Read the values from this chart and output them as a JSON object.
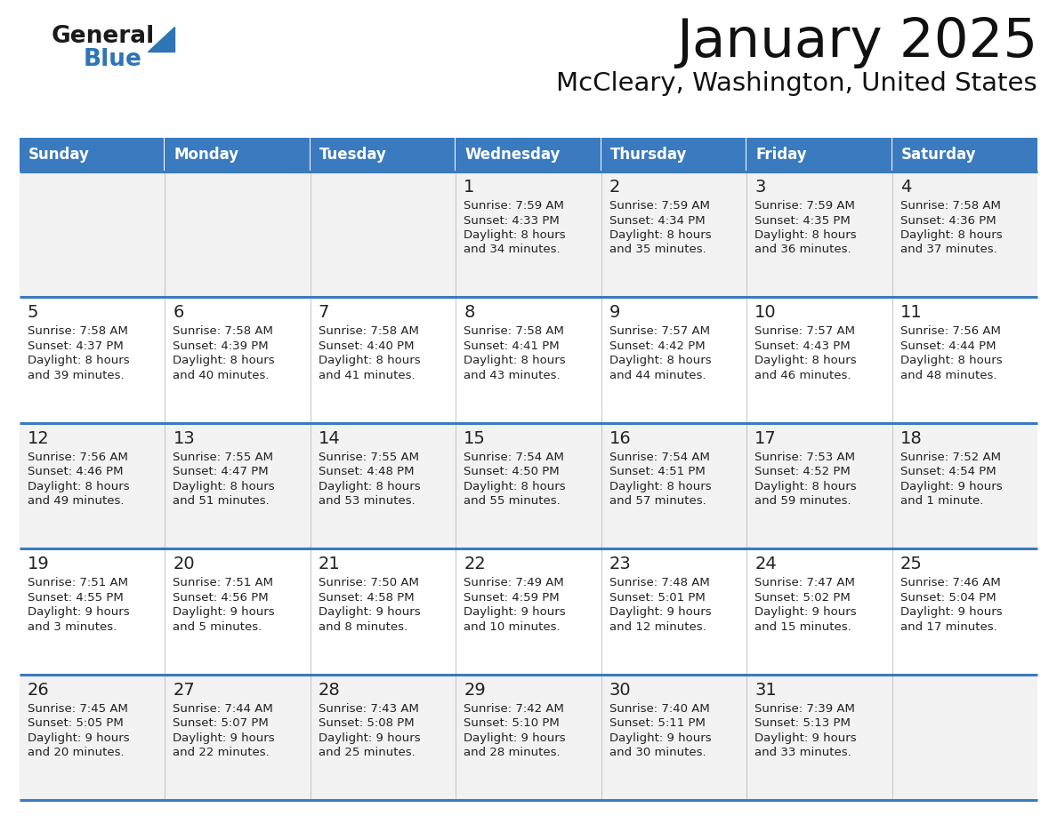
{
  "title": "January 2025",
  "subtitle": "McCleary, Washington, United States",
  "header_color": "#3a7abf",
  "header_text_color": "#FFFFFF",
  "day_names": [
    "Sunday",
    "Monday",
    "Tuesday",
    "Wednesday",
    "Thursday",
    "Friday",
    "Saturday"
  ],
  "background_color": "#FFFFFF",
  "cell_bg_even": "#f2f2f2",
  "cell_bg_odd": "#FFFFFF",
  "border_color": "#3a7abf",
  "day_number_color": "#222222",
  "text_color": "#222222",
  "logo_text1": "General",
  "logo_text2": "Blue",
  "logo_color1": "#1A1A1A",
  "logo_color2": "#2E75B6",
  "logo_triangle_color": "#2E75B6",
  "calendar_data": [
    [
      {
        "day": "",
        "sunrise": "",
        "sunset": "",
        "daylight": ""
      },
      {
        "day": "",
        "sunrise": "",
        "sunset": "",
        "daylight": ""
      },
      {
        "day": "",
        "sunrise": "",
        "sunset": "",
        "daylight": ""
      },
      {
        "day": "1",
        "sunrise": "7:59 AM",
        "sunset": "4:33 PM",
        "daylight": "8 hours and 34 minutes."
      },
      {
        "day": "2",
        "sunrise": "7:59 AM",
        "sunset": "4:34 PM",
        "daylight": "8 hours and 35 minutes."
      },
      {
        "day": "3",
        "sunrise": "7:59 AM",
        "sunset": "4:35 PM",
        "daylight": "8 hours and 36 minutes."
      },
      {
        "day": "4",
        "sunrise": "7:58 AM",
        "sunset": "4:36 PM",
        "daylight": "8 hours and 37 minutes."
      }
    ],
    [
      {
        "day": "5",
        "sunrise": "7:58 AM",
        "sunset": "4:37 PM",
        "daylight": "8 hours and 39 minutes."
      },
      {
        "day": "6",
        "sunrise": "7:58 AM",
        "sunset": "4:39 PM",
        "daylight": "8 hours and 40 minutes."
      },
      {
        "day": "7",
        "sunrise": "7:58 AM",
        "sunset": "4:40 PM",
        "daylight": "8 hours and 41 minutes."
      },
      {
        "day": "8",
        "sunrise": "7:58 AM",
        "sunset": "4:41 PM",
        "daylight": "8 hours and 43 minutes."
      },
      {
        "day": "9",
        "sunrise": "7:57 AM",
        "sunset": "4:42 PM",
        "daylight": "8 hours and 44 minutes."
      },
      {
        "day": "10",
        "sunrise": "7:57 AM",
        "sunset": "4:43 PM",
        "daylight": "8 hours and 46 minutes."
      },
      {
        "day": "11",
        "sunrise": "7:56 AM",
        "sunset": "4:44 PM",
        "daylight": "8 hours and 48 minutes."
      }
    ],
    [
      {
        "day": "12",
        "sunrise": "7:56 AM",
        "sunset": "4:46 PM",
        "daylight": "8 hours and 49 minutes."
      },
      {
        "day": "13",
        "sunrise": "7:55 AM",
        "sunset": "4:47 PM",
        "daylight": "8 hours and 51 minutes."
      },
      {
        "day": "14",
        "sunrise": "7:55 AM",
        "sunset": "4:48 PM",
        "daylight": "8 hours and 53 minutes."
      },
      {
        "day": "15",
        "sunrise": "7:54 AM",
        "sunset": "4:50 PM",
        "daylight": "8 hours and 55 minutes."
      },
      {
        "day": "16",
        "sunrise": "7:54 AM",
        "sunset": "4:51 PM",
        "daylight": "8 hours and 57 minutes."
      },
      {
        "day": "17",
        "sunrise": "7:53 AM",
        "sunset": "4:52 PM",
        "daylight": "8 hours and 59 minutes."
      },
      {
        "day": "18",
        "sunrise": "7:52 AM",
        "sunset": "4:54 PM",
        "daylight": "9 hours and 1 minute."
      }
    ],
    [
      {
        "day": "19",
        "sunrise": "7:51 AM",
        "sunset": "4:55 PM",
        "daylight": "9 hours and 3 minutes."
      },
      {
        "day": "20",
        "sunrise": "7:51 AM",
        "sunset": "4:56 PM",
        "daylight": "9 hours and 5 minutes."
      },
      {
        "day": "21",
        "sunrise": "7:50 AM",
        "sunset": "4:58 PM",
        "daylight": "9 hours and 8 minutes."
      },
      {
        "day": "22",
        "sunrise": "7:49 AM",
        "sunset": "4:59 PM",
        "daylight": "9 hours and 10 minutes."
      },
      {
        "day": "23",
        "sunrise": "7:48 AM",
        "sunset": "5:01 PM",
        "daylight": "9 hours and 12 minutes."
      },
      {
        "day": "24",
        "sunrise": "7:47 AM",
        "sunset": "5:02 PM",
        "daylight": "9 hours and 15 minutes."
      },
      {
        "day": "25",
        "sunrise": "7:46 AM",
        "sunset": "5:04 PM",
        "daylight": "9 hours and 17 minutes."
      }
    ],
    [
      {
        "day": "26",
        "sunrise": "7:45 AM",
        "sunset": "5:05 PM",
        "daylight": "9 hours and 20 minutes."
      },
      {
        "day": "27",
        "sunrise": "7:44 AM",
        "sunset": "5:07 PM",
        "daylight": "9 hours and 22 minutes."
      },
      {
        "day": "28",
        "sunrise": "7:43 AM",
        "sunset": "5:08 PM",
        "daylight": "9 hours and 25 minutes."
      },
      {
        "day": "29",
        "sunrise": "7:42 AM",
        "sunset": "5:10 PM",
        "daylight": "9 hours and 28 minutes."
      },
      {
        "day": "30",
        "sunrise": "7:40 AM",
        "sunset": "5:11 PM",
        "daylight": "9 hours and 30 minutes."
      },
      {
        "day": "31",
        "sunrise": "7:39 AM",
        "sunset": "5:13 PM",
        "daylight": "9 hours and 33 minutes."
      },
      {
        "day": "",
        "sunrise": "",
        "sunset": "",
        "daylight": ""
      }
    ]
  ]
}
